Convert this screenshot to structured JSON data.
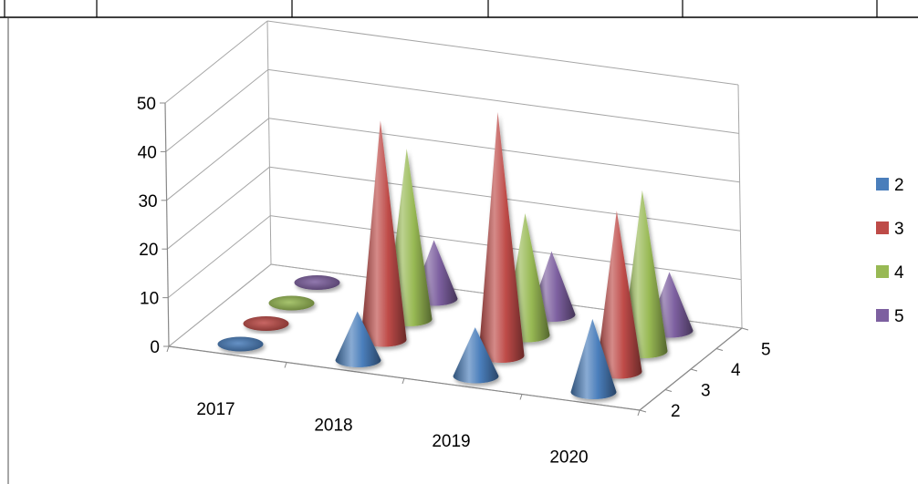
{
  "chart_data": {
    "type": "bar",
    "subtype": "3d-cone",
    "title": "",
    "xlabel": "",
    "ylabel": "",
    "zlabel": "",
    "categories": [
      "2017",
      "2018",
      "2019",
      "2020"
    ],
    "depth_categories": [
      "2",
      "3",
      "4",
      "5"
    ],
    "y_ticks": [
      "0",
      "10",
      "20",
      "30",
      "40",
      "50"
    ],
    "ylim": [
      0,
      50
    ],
    "grid": true,
    "legend_position": "right",
    "series": [
      {
        "name": "2",
        "color": "#4a7ebb",
        "values": [
          0,
          10,
          10,
          15
        ]
      },
      {
        "name": "3",
        "color": "#be4b48",
        "values": [
          0,
          45,
          50,
          33
        ]
      },
      {
        "name": "4",
        "color": "#98b954",
        "values": [
          0,
          35,
          25,
          33
        ]
      },
      {
        "name": "5",
        "color": "#7d60a0",
        "values": [
          0,
          12,
          13,
          12
        ]
      }
    ]
  }
}
